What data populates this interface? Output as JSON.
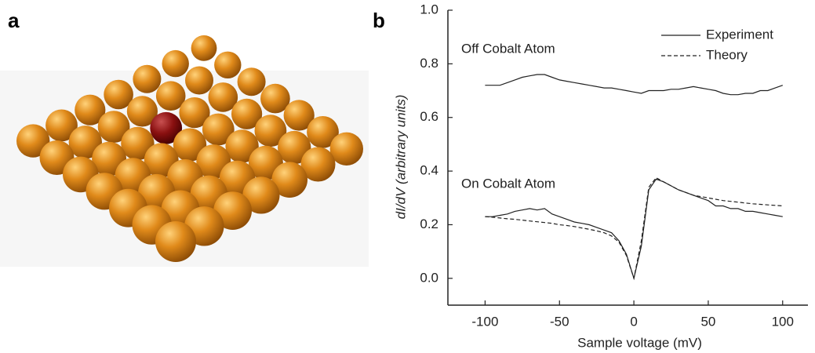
{
  "panel_labels": [
    "a",
    "b"
  ],
  "chart_data": {
    "type": "line",
    "xlabel": "Sample voltage (mV)",
    "ylabel": "dI/dV (arbitrary units)",
    "annotations": [
      "Off Cobalt Atom",
      "On Cobalt Atom"
    ],
    "xlim": [
      -125,
      117
    ],
    "ylim": [
      -0.1,
      1.0
    ],
    "xticks": [
      -100,
      -50,
      0,
      50,
      100
    ],
    "yticks": [
      {
        "value": 0,
        "label": "0.0"
      },
      0.2,
      0.4,
      0.6,
      0.8,
      {
        "value": 1,
        "label": "1.0"
      }
    ],
    "x": [
      -100,
      -95,
      -90,
      -85,
      -80,
      -75,
      -70,
      -65,
      -60,
      -55,
      -50,
      -45,
      -40,
      -35,
      -30,
      -25,
      -20,
      -15,
      -10,
      -5,
      0,
      5,
      10,
      15,
      20,
      25,
      30,
      35,
      40,
      45,
      50,
      55,
      60,
      65,
      70,
      75,
      80,
      85,
      90,
      95,
      100
    ],
    "series": [
      {
        "name": "Experiment",
        "color": "#222222",
        "line_style": "solid",
        "values": [
          0.23,
          0.23,
          0.235,
          0.24,
          0.25,
          0.255,
          0.26,
          0.255,
          0.26,
          0.24,
          0.23,
          0.22,
          0.21,
          0.205,
          0.2,
          0.19,
          0.18,
          0.17,
          0.14,
          0.09,
          0.0,
          0.12,
          0.33,
          0.37,
          0.36,
          0.345,
          0.33,
          0.32,
          0.31,
          0.3,
          0.29,
          0.27,
          0.27,
          0.26,
          0.26,
          0.25,
          0.25,
          0.245,
          0.24,
          0.235,
          0.23
        ]
      },
      {
        "name": "Theory",
        "color": "#222222",
        "line_style": "dashed",
        "values": [
          0.23,
          0.228,
          0.225,
          0.222,
          0.22,
          0.217,
          0.214,
          0.211,
          0.208,
          0.205,
          0.2,
          0.197,
          0.193,
          0.188,
          0.183,
          0.177,
          0.17,
          0.158,
          0.135,
          0.085,
          0.0,
          0.14,
          0.34,
          0.375,
          0.36,
          0.345,
          0.33,
          0.32,
          0.31,
          0.305,
          0.3,
          0.295,
          0.29,
          0.287,
          0.284,
          0.281,
          0.278,
          0.276,
          0.274,
          0.272,
          0.27
        ]
      },
      {
        "color": "#222222",
        "line_style": "solid",
        "values": [
          0.72,
          0.72,
          0.72,
          0.73,
          0.74,
          0.75,
          0.755,
          0.76,
          0.76,
          0.75,
          0.74,
          0.735,
          0.73,
          0.725,
          0.72,
          0.715,
          0.71,
          0.71,
          0.705,
          0.7,
          0.695,
          0.69,
          0.7,
          0.7,
          0.7,
          0.705,
          0.705,
          0.71,
          0.715,
          0.71,
          0.705,
          0.7,
          0.69,
          0.685,
          0.685,
          0.69,
          0.69,
          0.7,
          0.7,
          0.71,
          0.72
        ]
      }
    ]
  }
}
